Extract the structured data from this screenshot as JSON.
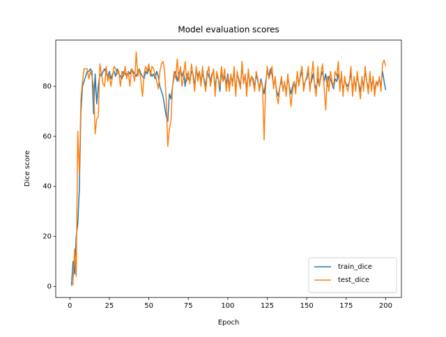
{
  "chart_data": {
    "type": "line",
    "title": "Model evaluation scores",
    "x_label": "Epoch",
    "y_label": "Dice score",
    "x": [
      1,
      2,
      3,
      4,
      5,
      6,
      7,
      8,
      9,
      10,
      11,
      12,
      13,
      14,
      15,
      16,
      17,
      18,
      19,
      20,
      21,
      22,
      23,
      24,
      25,
      26,
      27,
      28,
      29,
      30,
      31,
      32,
      33,
      34,
      35,
      36,
      37,
      38,
      39,
      40,
      41,
      42,
      43,
      44,
      45,
      46,
      47,
      48,
      49,
      50,
      51,
      52,
      53,
      54,
      55,
      56,
      57,
      58,
      59,
      60,
      61,
      62,
      63,
      64,
      65,
      66,
      67,
      68,
      69,
      70,
      71,
      72,
      73,
      74,
      75,
      76,
      77,
      78,
      79,
      80,
      81,
      82,
      83,
      84,
      85,
      86,
      87,
      88,
      89,
      90,
      91,
      92,
      93,
      94,
      95,
      96,
      97,
      98,
      99,
      100,
      101,
      102,
      103,
      104,
      105,
      106,
      107,
      108,
      109,
      110,
      111,
      112,
      113,
      114,
      115,
      116,
      117,
      118,
      119,
      120,
      121,
      122,
      123,
      124,
      125,
      126,
      127,
      128,
      129,
      130,
      131,
      132,
      133,
      134,
      135,
      136,
      137,
      138,
      139,
      140,
      141,
      142,
      143,
      144,
      145,
      146,
      147,
      148,
      149,
      150,
      151,
      152,
      153,
      154,
      155,
      156,
      157,
      158,
      159,
      160,
      161,
      162,
      163,
      164,
      165,
      166,
      167,
      168,
      169,
      170,
      171,
      172,
      173,
      174,
      175,
      176,
      177,
      178,
      179,
      180,
      181,
      182,
      183,
      184,
      185,
      186,
      187,
      188,
      189,
      190,
      191,
      192,
      193,
      194,
      195,
      196,
      197,
      198,
      199,
      200
    ],
    "series": [
      {
        "name": "train_dice",
        "color": "#1f77b4",
        "values": [
          0.3,
          10,
          5,
          20,
          25,
          39,
          70,
          80,
          82,
          84,
          86,
          86,
          87,
          86,
          69,
          85,
          73,
          80,
          85,
          84,
          86,
          87,
          85,
          84,
          86,
          83,
          85,
          86,
          84,
          87,
          85,
          84,
          83,
          86,
          85,
          84,
          86,
          85,
          87,
          86,
          85,
          84,
          86,
          87,
          85,
          84,
          83,
          86,
          85,
          87,
          86,
          84,
          85,
          83,
          86,
          84,
          80,
          78,
          76,
          72,
          68,
          66,
          77,
          75,
          80,
          84,
          86,
          82,
          85,
          87,
          84,
          86,
          80,
          85,
          83,
          82,
          86,
          85,
          80,
          87,
          84,
          86,
          82,
          85,
          83,
          80,
          86,
          84,
          82,
          85,
          86,
          80,
          84,
          83,
          78,
          86,
          82,
          84,
          81,
          85,
          80,
          84,
          82,
          86,
          78,
          85,
          83,
          80,
          88,
          82,
          84,
          79,
          86,
          81,
          84,
          83,
          80,
          85,
          82,
          79,
          83,
          80,
          77,
          82,
          86,
          84,
          87,
          85,
          80,
          83,
          78,
          76,
          80,
          82,
          79,
          81,
          78,
          83,
          80,
          77,
          80,
          82,
          79,
          85,
          81,
          84,
          86,
          80,
          82,
          83,
          86,
          80,
          82,
          85,
          81,
          79,
          83,
          80,
          84,
          86,
          82,
          85,
          80,
          84,
          83,
          81,
          79,
          83,
          82,
          85,
          80,
          84,
          78,
          83,
          81,
          80,
          82,
          85,
          79,
          82,
          80,
          84,
          81,
          78,
          83,
          80,
          86,
          82,
          79,
          84,
          80,
          83,
          78,
          82,
          81,
          83,
          80,
          86,
          82,
          78.5
        ]
      },
      {
        "name": "test_dice",
        "color": "#ff7f0e",
        "values": [
          0.5,
          0.8,
          15,
          4,
          62,
          45,
          75,
          82,
          87,
          87,
          87,
          83,
          86,
          84,
          80,
          61,
          67,
          68,
          89,
          85,
          81,
          80,
          88,
          82,
          85,
          80,
          84,
          88,
          87,
          85,
          86,
          80,
          86,
          84,
          88,
          83,
          86,
          80,
          87,
          85,
          82,
          93.8,
          84,
          87,
          82,
          76,
          85,
          88,
          86,
          89,
          84,
          88,
          87,
          85,
          82,
          79,
          86,
          89,
          90,
          86,
          75,
          56,
          63,
          66,
          80,
          86,
          83,
          91,
          82,
          88,
          80,
          84,
          90,
          82,
          86,
          81,
          89,
          84,
          78,
          88,
          82,
          86,
          80,
          88,
          82,
          78,
          85,
          88,
          80,
          84,
          87,
          76,
          86,
          83,
          80,
          88,
          82,
          87,
          78,
          84,
          78,
          85,
          80,
          88,
          76,
          86,
          82,
          79,
          90,
          81,
          85,
          76,
          87,
          80,
          84,
          82,
          78,
          86,
          83,
          78,
          82,
          80,
          58.6,
          80,
          88,
          83,
          85,
          88,
          79,
          84,
          76,
          73,
          80,
          84,
          78,
          82,
          76,
          85,
          79,
          72,
          78,
          82,
          77,
          86,
          80,
          85,
          88,
          78,
          82,
          84,
          88,
          78,
          84,
          90,
          80,
          76,
          88,
          80,
          85,
          89,
          80,
          70.5,
          84,
          78,
          86,
          82,
          80,
          86,
          84,
          90,
          78,
          86,
          76,
          84,
          80,
          78,
          82,
          88,
          76,
          84,
          78,
          86,
          80,
          75,
          84,
          78,
          88,
          82,
          77,
          86,
          78,
          84,
          76,
          82,
          80,
          84,
          78,
          89,
          90.5,
          88
        ]
      }
    ],
    "xlim": [
      -8.95,
      209.95
    ],
    "xticks": [
      0,
      25,
      50,
      75,
      100,
      125,
      150,
      175,
      200
    ],
    "ylim": [
      -4.4,
      98.5
    ],
    "yticks": [
      0,
      20,
      40,
      60,
      80
    ],
    "legend": "lower right"
  }
}
